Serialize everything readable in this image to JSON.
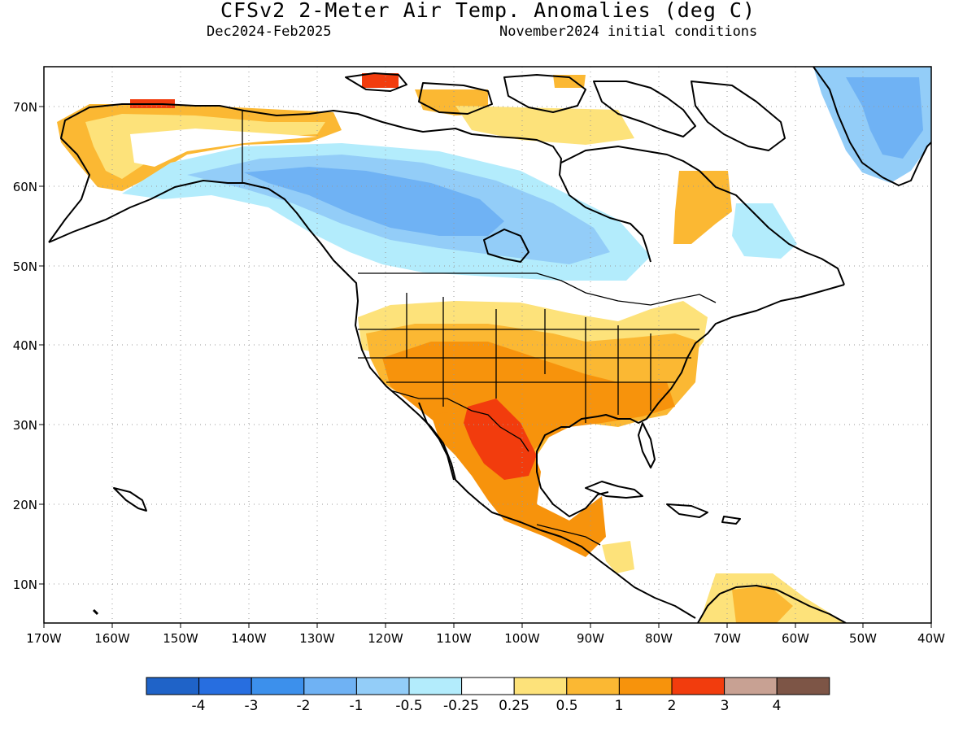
{
  "title": "CFSv2 2-Meter Air Temp. Anomalies (deg C)",
  "subtitle_left": "Dec2024-Feb2025",
  "subtitle_right": "November2024 initial conditions",
  "lat_labels": [
    "70N",
    "60N",
    "50N",
    "40N",
    "30N",
    "20N",
    "10N"
  ],
  "lon_labels": [
    "170W",
    "160W",
    "150W",
    "140W",
    "130W",
    "120W",
    "110W",
    "100W",
    "90W",
    "80W",
    "70W",
    "60W",
    "50W",
    "40W"
  ],
  "map_extent": {
    "lon_min": -170,
    "lon_max": -40,
    "lat_min": 5,
    "lat_max": 75
  },
  "colorbar": {
    "colors": [
      "#1f63c8",
      "#276ee0",
      "#3c90ec",
      "#6fb2f4",
      "#93cdf8",
      "#b3ecfc",
      "#ffffff",
      "#fde27a",
      "#fbb833",
      "#f7930c",
      "#f23c0d",
      "#c8a193",
      "#7d5546"
    ],
    "labels": [
      "-4",
      "-3",
      "-2",
      "-1",
      "-0.5",
      "-0.25",
      "0.25",
      "0.5",
      "1",
      "2",
      "3",
      "4"
    ]
  },
  "chart_data": {
    "type": "heatmap",
    "variable": "2-Meter Air Temp. Anomalies (deg C)",
    "levels": [
      -4,
      -3,
      -2,
      -1,
      -0.5,
      -0.25,
      0.25,
      0.5,
      1,
      2,
      3,
      4
    ],
    "colors": [
      "#1f63c8",
      "#276ee0",
      "#3c90ec",
      "#6fb2f4",
      "#93cdf8",
      "#b3ecfc",
      "#ffffff",
      "#fde27a",
      "#fbb833",
      "#f7930c",
      "#f23c0d",
      "#c8a193",
      "#7d5546"
    ],
    "x_range": [
      -170,
      -40
    ],
    "y_range": [
      5,
      75
    ],
    "grid": true
  }
}
